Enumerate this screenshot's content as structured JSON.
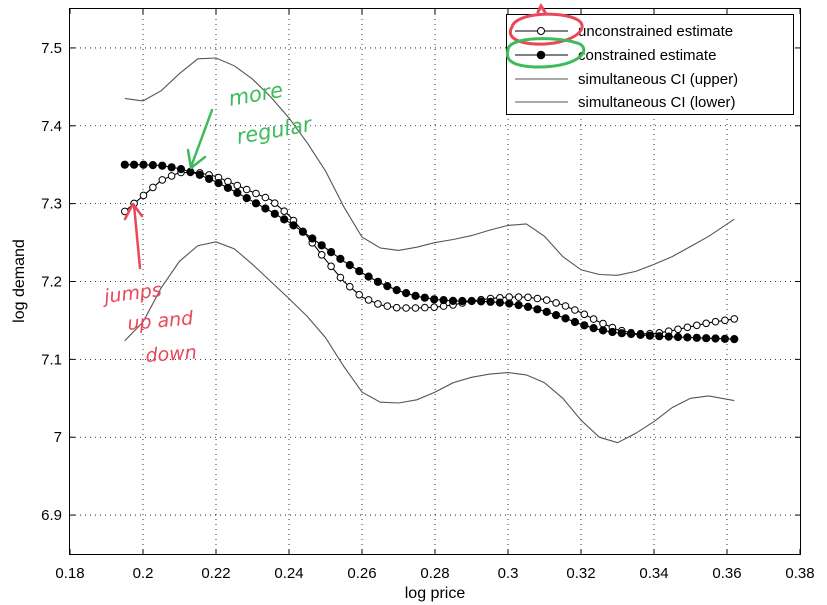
{
  "chart_data": {
    "type": "line",
    "xlabel": "log price",
    "ylabel": "log demand",
    "xlim": [
      0.18,
      0.38
    ],
    "ylim": [
      6.85,
      7.55
    ],
    "xticks": [
      0.18,
      0.2,
      0.22,
      0.24,
      0.26,
      0.28,
      0.3,
      0.32,
      0.34,
      0.36,
      0.38
    ],
    "xtick_labels": [
      "0.18",
      "0.2",
      "0.22",
      "0.24",
      "0.26",
      "0.28",
      "0.3",
      "0.32",
      "0.34",
      "0.36",
      "0.38"
    ],
    "yticks": [
      6.9,
      7.0,
      7.1,
      7.2,
      7.3,
      7.4,
      7.5
    ],
    "ytick_labels": [
      "6.9",
      "7",
      "7.1",
      "7.2",
      "7.3",
      "7.4",
      "7.5"
    ],
    "grid": true,
    "legend_position": "top-right",
    "x_start": 0.195,
    "x_end": 0.362,
    "marker_count": 66,
    "series": [
      {
        "name": "unconstrained estimate",
        "marker": "open-circle",
        "points": [
          [
            0.195,
            7.29
          ],
          [
            0.2,
            7.31
          ],
          [
            0.205,
            7.33
          ],
          [
            0.21,
            7.34
          ],
          [
            0.215,
            7.34
          ],
          [
            0.22,
            7.335
          ],
          [
            0.225,
            7.325
          ],
          [
            0.23,
            7.315
          ],
          [
            0.235,
            7.305
          ],
          [
            0.24,
            7.285
          ],
          [
            0.245,
            7.258
          ],
          [
            0.25,
            7.228
          ],
          [
            0.255,
            7.2
          ],
          [
            0.26,
            7.18
          ],
          [
            0.265,
            7.17
          ],
          [
            0.27,
            7.166
          ],
          [
            0.275,
            7.166
          ],
          [
            0.28,
            7.167
          ],
          [
            0.285,
            7.17
          ],
          [
            0.29,
            7.175
          ],
          [
            0.295,
            7.178
          ],
          [
            0.3,
            7.18
          ],
          [
            0.305,
            7.18
          ],
          [
            0.31,
            7.177
          ],
          [
            0.315,
            7.17
          ],
          [
            0.32,
            7.16
          ],
          [
            0.325,
            7.148
          ],
          [
            0.33,
            7.138
          ],
          [
            0.335,
            7.133
          ],
          [
            0.34,
            7.133
          ],
          [
            0.345,
            7.137
          ],
          [
            0.35,
            7.142
          ],
          [
            0.355,
            7.147
          ],
          [
            0.362,
            7.152
          ]
        ]
      },
      {
        "name": "constrained estimate",
        "marker": "filled-circle",
        "points": [
          [
            0.195,
            7.35
          ],
          [
            0.2,
            7.35
          ],
          [
            0.205,
            7.349
          ],
          [
            0.21,
            7.345
          ],
          [
            0.215,
            7.338
          ],
          [
            0.22,
            7.328
          ],
          [
            0.225,
            7.316
          ],
          [
            0.23,
            7.303
          ],
          [
            0.235,
            7.29
          ],
          [
            0.24,
            7.276
          ],
          [
            0.245,
            7.26
          ],
          [
            0.25,
            7.243
          ],
          [
            0.255,
            7.226
          ],
          [
            0.26,
            7.211
          ],
          [
            0.265,
            7.198
          ],
          [
            0.27,
            7.188
          ],
          [
            0.275,
            7.181
          ],
          [
            0.28,
            7.177
          ],
          [
            0.285,
            7.175
          ],
          [
            0.29,
            7.175
          ],
          [
            0.295,
            7.174
          ],
          [
            0.3,
            7.172
          ],
          [
            0.305,
            7.168
          ],
          [
            0.31,
            7.162
          ],
          [
            0.315,
            7.154
          ],
          [
            0.32,
            7.145
          ],
          [
            0.325,
            7.138
          ],
          [
            0.33,
            7.134
          ],
          [
            0.335,
            7.132
          ],
          [
            0.34,
            7.13
          ],
          [
            0.345,
            7.129
          ],
          [
            0.35,
            7.128
          ],
          [
            0.355,
            7.127
          ],
          [
            0.362,
            7.126
          ]
        ]
      },
      {
        "name": "simultaneous CI (upper)",
        "marker": "none",
        "points": [
          [
            0.195,
            7.435
          ],
          [
            0.2,
            7.432
          ],
          [
            0.205,
            7.445
          ],
          [
            0.21,
            7.467
          ],
          [
            0.215,
            7.486
          ],
          [
            0.22,
            7.487
          ],
          [
            0.225,
            7.477
          ],
          [
            0.23,
            7.46
          ],
          [
            0.235,
            7.437
          ],
          [
            0.24,
            7.41
          ],
          [
            0.245,
            7.378
          ],
          [
            0.25,
            7.342
          ],
          [
            0.255,
            7.296
          ],
          [
            0.26,
            7.257
          ],
          [
            0.265,
            7.243
          ],
          [
            0.27,
            7.24
          ],
          [
            0.275,
            7.244
          ],
          [
            0.28,
            7.25
          ],
          [
            0.285,
            7.254
          ],
          [
            0.29,
            7.259
          ],
          [
            0.295,
            7.266
          ],
          [
            0.3,
            7.272
          ],
          [
            0.305,
            7.274
          ],
          [
            0.31,
            7.258
          ],
          [
            0.315,
            7.232
          ],
          [
            0.32,
            7.215
          ],
          [
            0.325,
            7.209
          ],
          [
            0.33,
            7.208
          ],
          [
            0.335,
            7.213
          ],
          [
            0.34,
            7.222
          ],
          [
            0.345,
            7.232
          ],
          [
            0.35,
            7.245
          ],
          [
            0.355,
            7.258
          ],
          [
            0.362,
            7.28
          ]
        ]
      },
      {
        "name": "simultaneous CI (lower)",
        "marker": "none",
        "points": [
          [
            0.195,
            7.124
          ],
          [
            0.2,
            7.148
          ],
          [
            0.205,
            7.192
          ],
          [
            0.21,
            7.226
          ],
          [
            0.215,
            7.246
          ],
          [
            0.22,
            7.251
          ],
          [
            0.225,
            7.242
          ],
          [
            0.23,
            7.222
          ],
          [
            0.235,
            7.2
          ],
          [
            0.24,
            7.178
          ],
          [
            0.245,
            7.155
          ],
          [
            0.25,
            7.128
          ],
          [
            0.255,
            7.091
          ],
          [
            0.26,
            7.058
          ],
          [
            0.265,
            7.045
          ],
          [
            0.27,
            7.044
          ],
          [
            0.275,
            7.048
          ],
          [
            0.28,
            7.058
          ],
          [
            0.285,
            7.07
          ],
          [
            0.29,
            7.077
          ],
          [
            0.295,
            7.081
          ],
          [
            0.3,
            7.083
          ],
          [
            0.305,
            7.08
          ],
          [
            0.31,
            7.07
          ],
          [
            0.315,
            7.05
          ],
          [
            0.32,
            7.022
          ],
          [
            0.325,
            7.0
          ],
          [
            0.33,
            6.993
          ],
          [
            0.335,
            7.005
          ],
          [
            0.34,
            7.02
          ],
          [
            0.345,
            7.038
          ],
          [
            0.35,
            7.05
          ],
          [
            0.355,
            7.053
          ],
          [
            0.362,
            7.047
          ]
        ]
      }
    ]
  },
  "annotations": {
    "red": {
      "lines": [
        "jumps",
        "up and",
        "down"
      ],
      "color": "#e8485a"
    },
    "green": {
      "lines": [
        "more",
        "regular"
      ],
      "color": "#3ebb5a"
    }
  }
}
